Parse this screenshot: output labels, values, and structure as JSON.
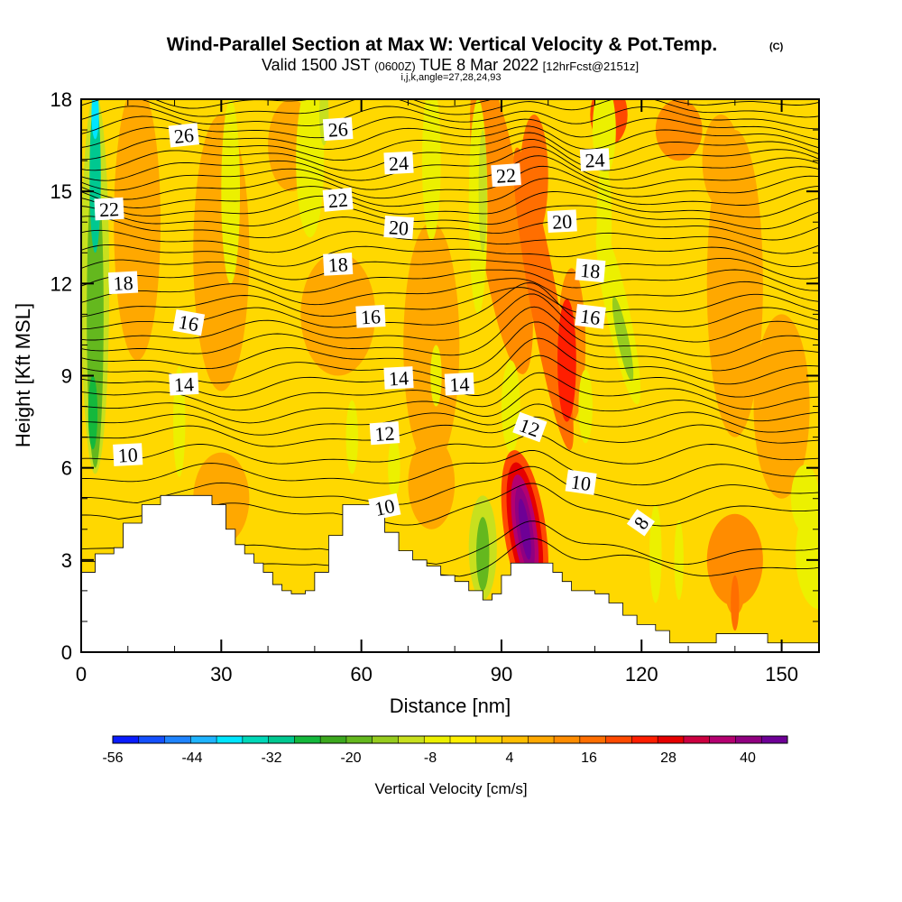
{
  "title": {
    "main": "Wind-Parallel Section at Max W: Vertical Velocity & Pot.Temp.",
    "mark": "(C)",
    "valid_a": "Valid 1500 JST",
    "valid_b": "(0600Z)",
    "valid_c": "TUE 8 Mar 2022",
    "valid_d": "[12hrFcst@2151z]",
    "indices": "i,j,k,angle=27,28,24,93"
  },
  "chart_data": {
    "type": "heatmap",
    "xlabel": "Distance [nm]",
    "ylabel": "Height [Kft MSL]",
    "xlim": [
      0,
      158
    ],
    "ylim": [
      0,
      18
    ],
    "xticks": [
      0,
      30,
      60,
      90,
      120,
      150
    ],
    "yticks": [
      0,
      3,
      6,
      9,
      12,
      15,
      18
    ],
    "field_name": "Vertical Velocity",
    "colorbar": {
      "label": "Vertical Velocity [cm/s]",
      "ticks": [
        -56,
        -44,
        -32,
        -20,
        -8,
        4,
        16,
        28,
        40
      ],
      "min": -56,
      "max": 46,
      "step": 4,
      "colors": [
        "#0a1cff",
        "#1450ff",
        "#1f84ff",
        "#1fb4ff",
        "#00e6ff",
        "#00d8b8",
        "#00c890",
        "#14b83c",
        "#3ca81e",
        "#64b81e",
        "#96cc1e",
        "#c8e01e",
        "#ecf000",
        "#fff000",
        "#ffd800",
        "#ffbe00",
        "#ffa800",
        "#ff8c00",
        "#ff6e00",
        "#ff4a00",
        "#ff1e00",
        "#e60000",
        "#cc0040",
        "#b40070",
        "#900080",
        "#6e0096"
      ]
    },
    "terrain_kft": [
      [
        0,
        2.6
      ],
      [
        3,
        3.2
      ],
      [
        6,
        3.2
      ],
      [
        7,
        3.4
      ],
      [
        9,
        4.2
      ],
      [
        10,
        4.2
      ],
      [
        13,
        4.8
      ],
      [
        17,
        5.1
      ],
      [
        25,
        5.1
      ],
      [
        28,
        4.8
      ],
      [
        31,
        4.0
      ],
      [
        33,
        3.5
      ],
      [
        35,
        3.2
      ],
      [
        37,
        2.9
      ],
      [
        39,
        2.6
      ],
      [
        41,
        2.2
      ],
      [
        43,
        2.0
      ],
      [
        45,
        1.9
      ],
      [
        48,
        2.0
      ],
      [
        50,
        2.6
      ],
      [
        53,
        3.8
      ],
      [
        56,
        4.8
      ],
      [
        62,
        4.8
      ],
      [
        65,
        3.9
      ],
      [
        68,
        3.3
      ],
      [
        71,
        3.0
      ],
      [
        74,
        2.8
      ],
      [
        77,
        2.5
      ],
      [
        80,
        2.3
      ],
      [
        83,
        2.0
      ],
      [
        86,
        1.7
      ],
      [
        88,
        1.9
      ],
      [
        90,
        2.5
      ],
      [
        92,
        2.9
      ],
      [
        98,
        2.9
      ],
      [
        101,
        2.6
      ],
      [
        103,
        2.3
      ],
      [
        105,
        2.0
      ],
      [
        110,
        1.9
      ],
      [
        113,
        1.6
      ],
      [
        116,
        1.2
      ],
      [
        119,
        0.9
      ],
      [
        123,
        0.7
      ],
      [
        126,
        0.3
      ],
      [
        133,
        0.3
      ],
      [
        136,
        0.6
      ],
      [
        141,
        0.6
      ],
      [
        147,
        0.3
      ],
      [
        150,
        0.3
      ],
      [
        158,
        0.3
      ]
    ],
    "contour_labels": [
      {
        "text": "26",
        "x": 22,
        "y": 16.8,
        "angle": -6
      },
      {
        "text": "26",
        "x": 55,
        "y": 17.0,
        "angle": -4
      },
      {
        "text": "24",
        "x": 68,
        "y": 15.9,
        "angle": -3
      },
      {
        "text": "24",
        "x": 110,
        "y": 16.0,
        "angle": -3
      },
      {
        "text": "22",
        "x": 6,
        "y": 14.4,
        "angle": -3
      },
      {
        "text": "22",
        "x": 55,
        "y": 14.7,
        "angle": -5
      },
      {
        "text": "22",
        "x": 91,
        "y": 15.5,
        "angle": -4
      },
      {
        "text": "20",
        "x": 68,
        "y": 13.8,
        "angle": 4
      },
      {
        "text": "20",
        "x": 103,
        "y": 14.0,
        "angle": -3
      },
      {
        "text": "18",
        "x": 9,
        "y": 12.0,
        "angle": -3
      },
      {
        "text": "18",
        "x": 55,
        "y": 12.6,
        "angle": -3
      },
      {
        "text": "18",
        "x": 109,
        "y": 12.4,
        "angle": 5
      },
      {
        "text": "16",
        "x": 23,
        "y": 10.7,
        "angle": 10
      },
      {
        "text": "16",
        "x": 62,
        "y": 10.9,
        "angle": -3
      },
      {
        "text": "16",
        "x": 109,
        "y": 10.9,
        "angle": 7
      },
      {
        "text": "14",
        "x": 22,
        "y": 8.7,
        "angle": -3
      },
      {
        "text": "14",
        "x": 68,
        "y": 8.9,
        "angle": -3
      },
      {
        "text": "14",
        "x": 81,
        "y": 8.7,
        "angle": -3
      },
      {
        "text": "12",
        "x": 65,
        "y": 7.1,
        "angle": -4
      },
      {
        "text": "12",
        "x": 96,
        "y": 7.3,
        "angle": 20
      },
      {
        "text": "10",
        "x": 10,
        "y": 6.4,
        "angle": -3
      },
      {
        "text": "10",
        "x": 65,
        "y": 4.7,
        "angle": -12
      },
      {
        "text": "10",
        "x": 107,
        "y": 5.5,
        "angle": 8
      },
      {
        "text": "8",
        "x": 120,
        "y": 4.2,
        "angle": -55
      }
    ],
    "contour_levels": [
      8,
      9,
      10,
      10.5,
      11,
      11.5,
      12,
      12.5,
      13,
      13.5,
      14,
      14.5,
      15,
      15.5,
      16,
      16.5,
      17,
      17.5,
      18,
      18.5,
      19,
      19.5,
      20,
      20.5,
      21,
      21.5,
      22,
      22.5,
      23,
      23.5,
      24,
      24.5,
      25,
      25.5,
      26,
      26.5,
      27
    ]
  }
}
